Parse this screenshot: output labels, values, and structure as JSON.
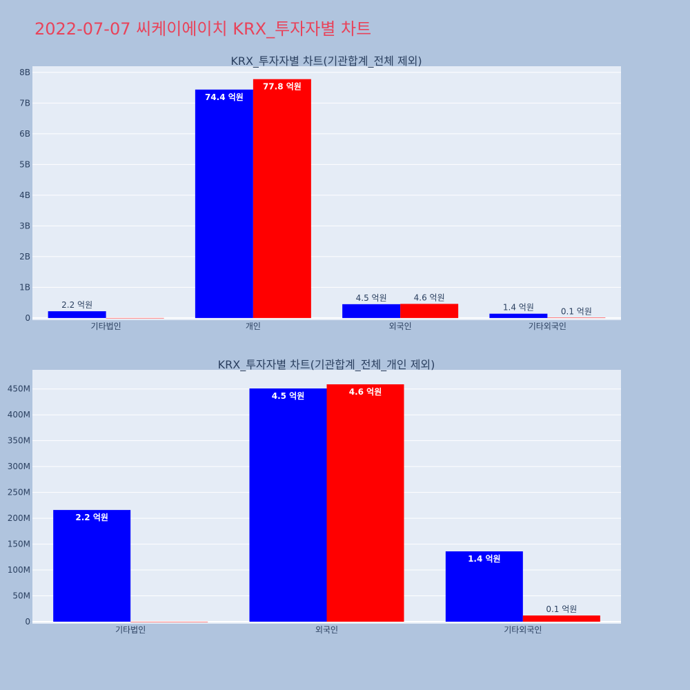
{
  "page": {
    "title": "2022-07-07 씨케이에이치 KRX_투자자별 차트"
  },
  "chart_data": [
    {
      "type": "bar",
      "title": "KRX_투자자별 차트(기관합계_전체 제외)",
      "categories": [
        "기타법인",
        "개인",
        "외국인",
        "기타외국인"
      ],
      "series": [
        {
          "color": "#0000ff",
          "values": [
            220000000,
            7440000000,
            450000000,
            140000000
          ],
          "labels": [
            "2.2 억원",
            "74.4 억원",
            "4.5 억원",
            "1.4 억원"
          ]
        },
        {
          "color": "#ff0000",
          "values": [
            0,
            7780000000,
            460000000,
            10000000
          ],
          "labels": [
            "",
            "77.8 억원",
            "4.6 억원",
            "0.1 억원"
          ]
        }
      ],
      "ylim": [
        -70000000,
        8200000000
      ],
      "yticks": [
        0,
        1000000000,
        2000000000,
        3000000000,
        4000000000,
        5000000000,
        6000000000,
        7000000000,
        8000000000
      ],
      "ytick_labels": [
        "0",
        "1B",
        "2B",
        "3B",
        "4B",
        "5B",
        "6B",
        "7B",
        "8B"
      ],
      "grid": true
    },
    {
      "type": "bar",
      "title": "KRX_투자자별 차트(기관합계_전체_개인 제외)",
      "categories": [
        "기타법인",
        "외국인",
        "기타외국인"
      ],
      "series": [
        {
          "color": "#0000ff",
          "values": [
            216000000,
            451000000,
            136000000
          ],
          "labels": [
            "2.2 억원",
            "4.5 억원",
            "1.4 억원"
          ]
        },
        {
          "color": "#ff0000",
          "values": [
            0,
            459000000,
            12000000
          ],
          "labels": [
            "",
            "4.6 억원",
            "0.1 억원"
          ]
        }
      ],
      "ylim": [
        -4000000,
        487000000
      ],
      "yticks": [
        0,
        50000000,
        100000000,
        150000000,
        200000000,
        250000000,
        300000000,
        350000000,
        400000000,
        450000000
      ],
      "ytick_labels": [
        "0",
        "50M",
        "100M",
        "150M",
        "200M",
        "250M",
        "300M",
        "350M",
        "400M",
        "450M"
      ],
      "grid": true
    }
  ]
}
